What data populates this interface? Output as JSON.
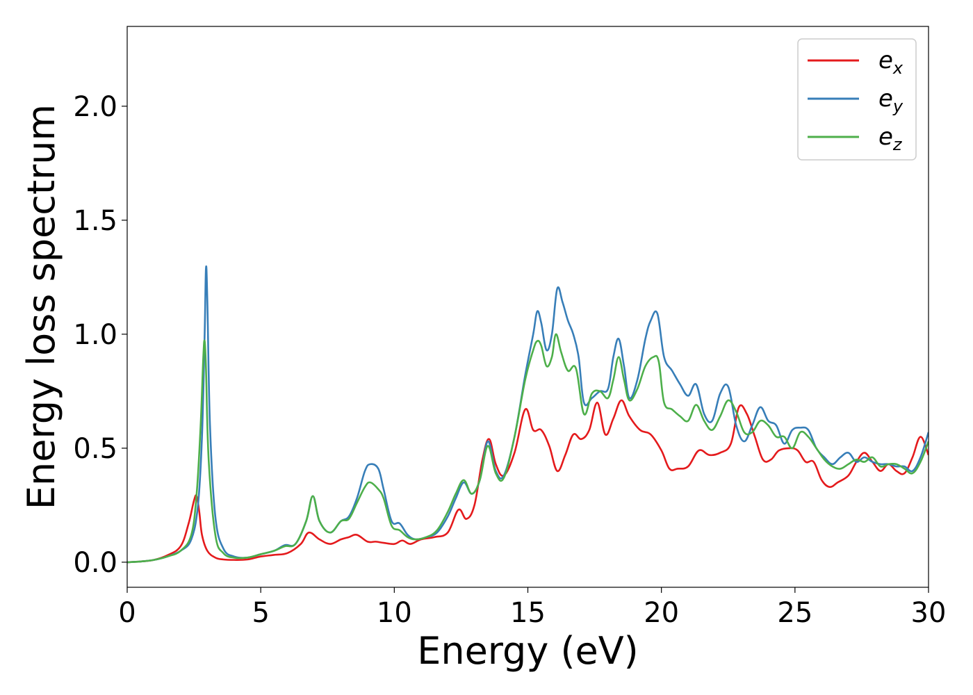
{
  "chart_data": {
    "type": "line",
    "title": "",
    "xlabel": "Energy (eV)",
    "ylabel": "Energy loss spectrum",
    "xlim": [
      0,
      30
    ],
    "ylim": [
      -0.11,
      2.35
    ],
    "xticks": [
      0,
      5,
      10,
      15,
      20,
      25,
      30
    ],
    "xtick_labels": [
      "0",
      "5",
      "10",
      "15",
      "20",
      "25",
      "30"
    ],
    "yticks": [
      0.0,
      0.5,
      1.0,
      1.5,
      2.0
    ],
    "ytick_labels": [
      "0.0",
      "0.5",
      "1.0",
      "1.5",
      "2.0"
    ],
    "grid": false,
    "legend": "top-right",
    "series": [
      {
        "name": "e",
        "subscript": "x",
        "color": "#e41a1c",
        "x": [
          0,
          0.5,
          1,
          1.5,
          2,
          2.3,
          2.5,
          2.6,
          2.7,
          2.8,
          3,
          3.3,
          3.6,
          4,
          4.5,
          5,
          5.5,
          6,
          6.5,
          6.8,
          7.2,
          7.6,
          8,
          8.3,
          8.6,
          9,
          9.3,
          9.6,
          10,
          10.3,
          10.6,
          11,
          11.5,
          12,
          12.4,
          12.7,
          13,
          13.3,
          13.55,
          13.8,
          14.1,
          14.5,
          14.9,
          15.2,
          15.5,
          15.8,
          16.1,
          16.4,
          16.7,
          17,
          17.3,
          17.6,
          17.9,
          18.2,
          18.5,
          18.8,
          19.2,
          19.6,
          20,
          20.3,
          20.6,
          21,
          21.4,
          21.8,
          22.2,
          22.6,
          22.9,
          23.2,
          23.5,
          23.8,
          24.1,
          24.4,
          24.8,
          25.1,
          25.4,
          25.7,
          26,
          26.3,
          26.6,
          27,
          27.3,
          27.6,
          27.9,
          28.2,
          28.5,
          28.8,
          29.1,
          29.4,
          29.7,
          30
        ],
        "y": [
          0.0,
          0.003,
          0.01,
          0.03,
          0.07,
          0.17,
          0.27,
          0.29,
          0.22,
          0.12,
          0.05,
          0.02,
          0.012,
          0.01,
          0.012,
          0.025,
          0.032,
          0.04,
          0.08,
          0.13,
          0.1,
          0.08,
          0.1,
          0.11,
          0.12,
          0.09,
          0.09,
          0.085,
          0.08,
          0.095,
          0.08,
          0.1,
          0.11,
          0.13,
          0.23,
          0.19,
          0.25,
          0.45,
          0.54,
          0.43,
          0.38,
          0.48,
          0.67,
          0.58,
          0.58,
          0.51,
          0.4,
          0.47,
          0.56,
          0.54,
          0.58,
          0.7,
          0.56,
          0.63,
          0.71,
          0.64,
          0.58,
          0.56,
          0.49,
          0.41,
          0.41,
          0.42,
          0.49,
          0.47,
          0.48,
          0.52,
          0.68,
          0.65,
          0.55,
          0.45,
          0.45,
          0.49,
          0.5,
          0.49,
          0.44,
          0.44,
          0.36,
          0.33,
          0.35,
          0.38,
          0.44,
          0.48,
          0.44,
          0.4,
          0.43,
          0.4,
          0.39,
          0.46,
          0.55,
          0.47
        ]
      },
      {
        "name": "e",
        "subscript": "y",
        "color": "#377eb8",
        "x": [
          0,
          0.5,
          1,
          1.5,
          2,
          2.4,
          2.65,
          2.8,
          2.9,
          2.95,
          3.0,
          3.1,
          3.3,
          3.6,
          4,
          4.5,
          5,
          5.5,
          5.9,
          6.3,
          6.7,
          6.95,
          7.2,
          7.6,
          8,
          8.3,
          8.6,
          8.9,
          9.1,
          9.4,
          9.6,
          9.9,
          10.2,
          10.5,
          10.8,
          11.2,
          11.6,
          12,
          12.3,
          12.6,
          12.9,
          13.2,
          13.5,
          13.8,
          14.1,
          14.5,
          14.9,
          15.2,
          15.35,
          15.5,
          15.7,
          15.9,
          16.1,
          16.3,
          16.5,
          16.7,
          16.9,
          17.1,
          17.4,
          17.7,
          18,
          18.2,
          18.4,
          18.6,
          18.8,
          19.1,
          19.4,
          19.6,
          19.85,
          20.1,
          20.4,
          20.7,
          21,
          21.3,
          21.6,
          21.9,
          22.2,
          22.5,
          22.8,
          23.1,
          23.4,
          23.7,
          24,
          24.3,
          24.6,
          24.9,
          25.2,
          25.5,
          25.8,
          26.1,
          26.4,
          26.7,
          27,
          27.3,
          27.6,
          27.9,
          28.2,
          28.5,
          28.8,
          29.1,
          29.4,
          29.7,
          30
        ],
        "y": [
          0.0,
          0.003,
          0.01,
          0.025,
          0.05,
          0.1,
          0.25,
          0.55,
          1.0,
          1.29,
          1.15,
          0.6,
          0.2,
          0.06,
          0.025,
          0.02,
          0.035,
          0.05,
          0.075,
          0.08,
          0.18,
          0.29,
          0.18,
          0.13,
          0.18,
          0.2,
          0.28,
          0.4,
          0.43,
          0.41,
          0.32,
          0.18,
          0.17,
          0.12,
          0.1,
          0.11,
          0.13,
          0.2,
          0.28,
          0.35,
          0.3,
          0.36,
          0.53,
          0.4,
          0.38,
          0.55,
          0.82,
          1.0,
          1.1,
          1.05,
          0.93,
          1.0,
          1.2,
          1.14,
          1.06,
          1.0,
          0.9,
          0.7,
          0.72,
          0.75,
          0.76,
          0.9,
          0.98,
          0.86,
          0.72,
          0.8,
          0.98,
          1.06,
          1.09,
          0.9,
          0.84,
          0.78,
          0.73,
          0.78,
          0.65,
          0.62,
          0.74,
          0.77,
          0.6,
          0.53,
          0.6,
          0.68,
          0.62,
          0.6,
          0.52,
          0.58,
          0.59,
          0.58,
          0.5,
          0.46,
          0.43,
          0.46,
          0.48,
          0.44,
          0.46,
          0.44,
          0.43,
          0.43,
          0.42,
          0.42,
          0.4,
          0.46,
          0.57
        ]
      },
      {
        "name": "e",
        "subscript": "z",
        "color": "#4daf4a",
        "x": [
          0,
          0.5,
          1,
          1.5,
          2,
          2.4,
          2.6,
          2.75,
          2.85,
          2.9,
          2.95,
          3.05,
          3.3,
          3.6,
          4,
          4.5,
          5,
          5.5,
          5.9,
          6.3,
          6.7,
          6.95,
          7.2,
          7.6,
          8,
          8.3,
          8.6,
          8.9,
          9.1,
          9.4,
          9.6,
          9.9,
          10.2,
          10.5,
          10.8,
          11.2,
          11.6,
          12,
          12.3,
          12.6,
          12.9,
          13.2,
          13.5,
          13.8,
          14.1,
          14.5,
          14.9,
          15.2,
          15.35,
          15.5,
          15.7,
          15.9,
          16.05,
          16.25,
          16.5,
          16.8,
          17.1,
          17.4,
          17.7,
          18,
          18.2,
          18.4,
          18.6,
          18.8,
          19.1,
          19.4,
          19.7,
          19.9,
          20.1,
          20.4,
          20.7,
          21,
          21.3,
          21.6,
          21.9,
          22.2,
          22.5,
          22.8,
          23.1,
          23.4,
          23.7,
          24,
          24.3,
          24.6,
          24.9,
          25.2,
          25.5,
          25.8,
          26.1,
          26.4,
          26.7,
          27,
          27.3,
          27.6,
          27.9,
          28.2,
          28.5,
          28.8,
          29.1,
          29.4,
          29.7,
          30
        ],
        "y": [
          0.0,
          0.003,
          0.01,
          0.025,
          0.05,
          0.12,
          0.3,
          0.6,
          0.9,
          0.97,
          0.85,
          0.45,
          0.12,
          0.04,
          0.02,
          0.02,
          0.035,
          0.05,
          0.07,
          0.08,
          0.18,
          0.29,
          0.18,
          0.13,
          0.18,
          0.19,
          0.26,
          0.33,
          0.35,
          0.32,
          0.28,
          0.16,
          0.14,
          0.11,
          0.1,
          0.11,
          0.14,
          0.22,
          0.3,
          0.36,
          0.3,
          0.36,
          0.51,
          0.39,
          0.37,
          0.55,
          0.8,
          0.93,
          0.97,
          0.95,
          0.86,
          0.9,
          1.0,
          0.92,
          0.84,
          0.85,
          0.65,
          0.74,
          0.75,
          0.72,
          0.8,
          0.9,
          0.8,
          0.71,
          0.76,
          0.86,
          0.9,
          0.88,
          0.7,
          0.67,
          0.64,
          0.62,
          0.69,
          0.62,
          0.58,
          0.64,
          0.71,
          0.66,
          0.57,
          0.57,
          0.62,
          0.6,
          0.55,
          0.55,
          0.5,
          0.57,
          0.55,
          0.5,
          0.45,
          0.42,
          0.41,
          0.43,
          0.45,
          0.44,
          0.46,
          0.42,
          0.43,
          0.43,
          0.41,
          0.39,
          0.44,
          0.53
        ]
      }
    ]
  }
}
